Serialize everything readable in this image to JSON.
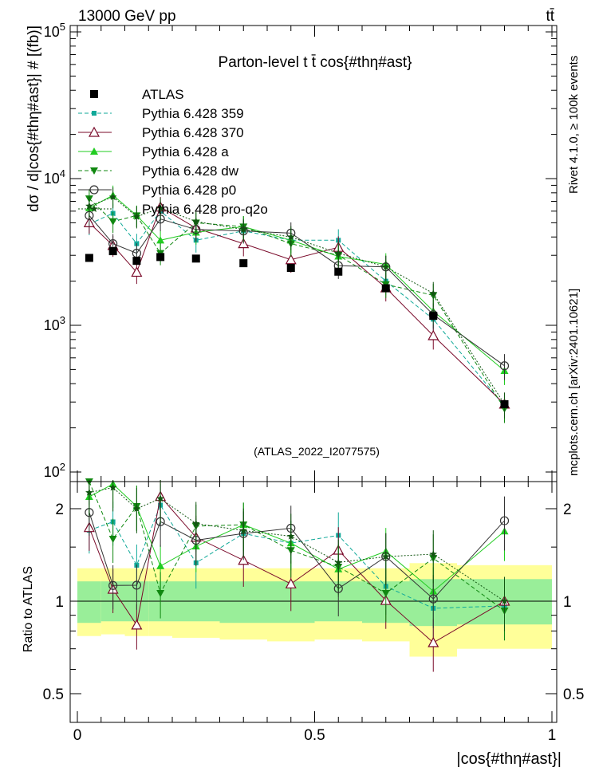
{
  "header": {
    "energy": "13000 GeV pp",
    "process": "tt̄"
  },
  "side_label": "mcplots.cern.ch [arXiv:2401.10621]",
  "rivet_label": "Rivet 4.1.0, ≥ 100k events",
  "analysis_tag": "(ATLAS_2022_I2077575)",
  "colors": {
    "atlas": "#000000",
    "p359": "#11a999",
    "p370": "#7a0a2a",
    "pa": "#22cc22",
    "pdw": "#118811",
    "pp0": "#333333",
    "pq2o": "#115511",
    "band_inner": "#99ee99",
    "band_outer": "#ffff99"
  },
  "chart_data": {
    "type": "line",
    "title": "Parton-level t t̄ cos{#thη#ast}",
    "xlabel": "|cos{#thη#ast}|",
    "ylabel": "dσ / d|cos{#thη#ast}| # [(fb)]",
    "ratio_ylabel": "Ratio to ATLAS",
    "xlim": [
      0,
      1
    ],
    "ylim": [
      100,
      100000
    ],
    "ratio_ylim": [
      0.4,
      2.5
    ],
    "xticks": [
      "0",
      "0.5",
      "1"
    ],
    "yticks": [
      "10^2",
      "10^3",
      "10^4",
      "10^5"
    ],
    "ratio_yticks": [
      "0.5",
      "1",
      "2"
    ],
    "x": [
      0.025,
      0.075,
      0.125,
      0.175,
      0.25,
      0.35,
      0.45,
      0.55,
      0.65,
      0.75,
      0.9
    ],
    "bins": [
      [
        0,
        0.05
      ],
      [
        0.05,
        0.1
      ],
      [
        0.1,
        0.15
      ],
      [
        0.15,
        0.2
      ],
      [
        0.2,
        0.3
      ],
      [
        0.3,
        0.4
      ],
      [
        0.4,
        0.5
      ],
      [
        0.5,
        0.6
      ],
      [
        0.6,
        0.7
      ],
      [
        0.7,
        0.8
      ],
      [
        0.8,
        1.0
      ]
    ],
    "atlas": [
      2880,
      3200,
      2750,
      2920,
      2850,
      2650,
      2460,
      2320,
      1790,
      1160,
      290
    ],
    "band_inner": [
      [
        0.85,
        1.16
      ],
      [
        0.86,
        1.16
      ],
      [
        0.86,
        1.16
      ],
      [
        0.86,
        1.16
      ],
      [
        0.86,
        1.16
      ],
      [
        0.85,
        1.16
      ],
      [
        0.85,
        1.16
      ],
      [
        0.86,
        1.16
      ],
      [
        0.85,
        1.16
      ],
      [
        0.83,
        1.18
      ],
      [
        0.84,
        1.18
      ]
    ],
    "band_outer": [
      [
        0.77,
        1.28
      ],
      [
        0.78,
        1.28
      ],
      [
        0.77,
        1.28
      ],
      [
        0.77,
        1.28
      ],
      [
        0.76,
        1.28
      ],
      [
        0.75,
        1.28
      ],
      [
        0.74,
        1.28
      ],
      [
        0.75,
        1.28
      ],
      [
        0.74,
        1.28
      ],
      [
        0.66,
        1.33
      ],
      [
        0.7,
        1.31
      ]
    ],
    "series": [
      {
        "name": "Pythia 6.428 359",
        "key": "p359",
        "marker": "square",
        "dash": "5,3",
        "values": [
          4900,
          5800,
          3600,
          6000,
          3800,
          4400,
          3800,
          3800,
          2000,
          1100,
          280
        ]
      },
      {
        "name": "Pythia 6.428 370",
        "key": "p370",
        "marker": "tri-open",
        "dash": "",
        "values": [
          5000,
          3500,
          2300,
          6400,
          4600,
          3600,
          2800,
          3400,
          1800,
          850,
          290
        ]
      },
      {
        "name": "Pythia 6.428 a",
        "key": "pa",
        "marker": "tri-up",
        "dash": "",
        "values": [
          6300,
          7700,
          5600,
          3800,
          4300,
          4700,
          3800,
          2950,
          2600,
          1250,
          490
        ]
      },
      {
        "name": "Pythia 6.428 dw",
        "key": "pdw",
        "marker": "tri-down",
        "dash": "5,3",
        "values": [
          7300,
          5100,
          5600,
          3100,
          5000,
          4700,
          3600,
          3000,
          1900,
          1600,
          270
        ]
      },
      {
        "name": "Pythia 6.428 p0",
        "key": "pp0",
        "marker": "circle-open",
        "dash": "",
        "values": [
          5600,
          3600,
          3100,
          5300,
          4500,
          4400,
          4250,
          2550,
          2500,
          1180,
          530
        ]
      },
      {
        "name": "Pythia 6.428 pro-q2o",
        "key": "pq2o",
        "marker": "star",
        "dash": "2,2",
        "values": [
          6500,
          7500,
          5500,
          6300,
          5100,
          4500,
          4000,
          3100,
          2500,
          1650,
          290
        ]
      }
    ],
    "legend": {
      "atlas_label": "ATLAS",
      "position": "top-left"
    }
  }
}
